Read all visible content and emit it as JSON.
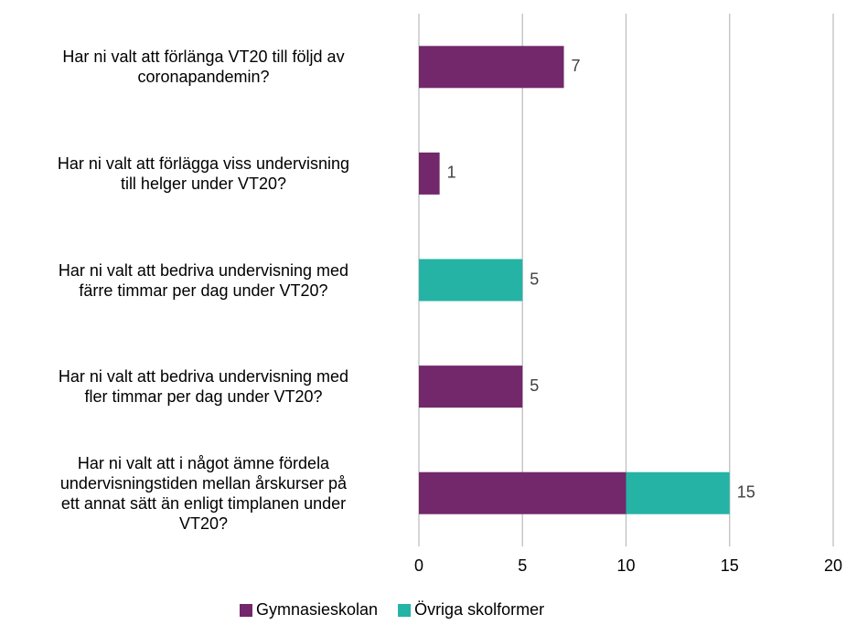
{
  "chart_data": {
    "type": "stacked-barh",
    "categories": [
      "Har ni valt att förlänga VT20 till följd av\ncoronapandemin?",
      "Har ni valt att förlägga viss undervisning\ntill helger under VT20?",
      "Har ni valt att bedriva undervisning med\nfärre timmar per dag under VT20?",
      "Har ni valt att bedriva undervisning med\nfler timmar per dag under VT20?",
      "Har ni valt att i något ämne fördela\nundervisningstiden mellan årskurser på\nett annat sätt än enligt timplanen under\nVT20?"
    ],
    "series": [
      {
        "name": "Gymnasieskolan",
        "color": "#72286b",
        "values": [
          7,
          1,
          0,
          5,
          10
        ]
      },
      {
        "name": "Övriga skolformer",
        "color": "#25b3a6",
        "values": [
          0,
          0,
          5,
          0,
          5
        ]
      }
    ],
    "totals": [
      7,
      1,
      5,
      5,
      15
    ],
    "xlim": [
      0,
      20
    ],
    "xticks": [
      0,
      5,
      10,
      15,
      20
    ],
    "grid": true,
    "legend": "bottom"
  }
}
